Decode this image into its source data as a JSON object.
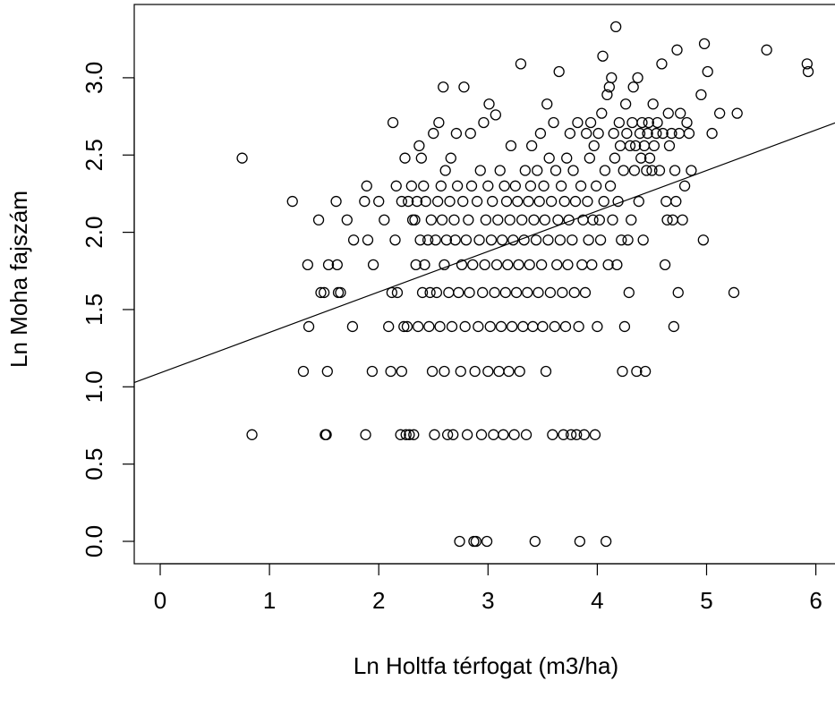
{
  "chart_data": {
    "type": "scatter",
    "title": "",
    "xlabel": "Ln Holtfa térfogat (m3/ha)",
    "ylabel": "Ln Moha fajszám",
    "xlim": [
      -0.25,
      6.25
    ],
    "ylim": [
      -0.12,
      3.35
    ],
    "xticks": [
      "0",
      "1",
      "2",
      "3",
      "4",
      "5",
      "6"
    ],
    "yticks": [
      "0.0",
      "0.5",
      "1.0",
      "1.5",
      "2.0",
      "2.5",
      "3.0"
    ],
    "grid": false,
    "legend": "none",
    "marker": "open-circle",
    "colors": {
      "points": "#000000",
      "line": "#000000",
      "frame": "#000000"
    },
    "regression_line": {
      "intercept": 1.09,
      "slope": 0.262
    },
    "points": [
      [
        0.75,
        2.48
      ],
      [
        0.84,
        0.69
      ],
      [
        1.21,
        2.2
      ],
      [
        1.31,
        1.1
      ],
      [
        1.35,
        1.79
      ],
      [
        1.36,
        1.39
      ],
      [
        1.45,
        2.08
      ],
      [
        1.47,
        1.61
      ],
      [
        1.5,
        1.61
      ],
      [
        1.51,
        0.69
      ],
      [
        1.52,
        0.69
      ],
      [
        1.53,
        1.1
      ],
      [
        1.54,
        1.79
      ],
      [
        1.61,
        2.2
      ],
      [
        1.62,
        1.79
      ],
      [
        1.63,
        1.61
      ],
      [
        1.65,
        1.61
      ],
      [
        1.71,
        2.08
      ],
      [
        1.76,
        1.39
      ],
      [
        1.77,
        1.95
      ],
      [
        1.87,
        2.2
      ],
      [
        1.88,
        0.69
      ],
      [
        1.89,
        2.3
      ],
      [
        1.9,
        1.95
      ],
      [
        1.94,
        1.1
      ],
      [
        1.95,
        1.79
      ],
      [
        2.0,
        2.2
      ],
      [
        2.05,
        2.08
      ],
      [
        2.09,
        1.39
      ],
      [
        2.11,
        1.1
      ],
      [
        2.12,
        1.61
      ],
      [
        2.13,
        2.71
      ],
      [
        2.15,
        1.95
      ],
      [
        2.16,
        2.3
      ],
      [
        2.17,
        1.61
      ],
      [
        2.2,
        0.69
      ],
      [
        2.21,
        1.1
      ],
      [
        2.21,
        2.2
      ],
      [
        2.23,
        1.39
      ],
      [
        2.24,
        2.48
      ],
      [
        2.25,
        0.69
      ],
      [
        2.26,
        1.39
      ],
      [
        2.27,
        2.2
      ],
      [
        2.28,
        0.69
      ],
      [
        2.3,
        2.3
      ],
      [
        2.31,
        2.08
      ],
      [
        2.32,
        0.69
      ],
      [
        2.33,
        2.08
      ],
      [
        2.34,
        1.79
      ],
      [
        2.35,
        2.2
      ],
      [
        2.36,
        1.39
      ],
      [
        2.37,
        2.56
      ],
      [
        2.38,
        1.95
      ],
      [
        2.39,
        2.48
      ],
      [
        2.4,
        1.61
      ],
      [
        2.41,
        2.3
      ],
      [
        2.42,
        1.79
      ],
      [
        2.43,
        2.2
      ],
      [
        2.45,
        1.95
      ],
      [
        2.46,
        1.39
      ],
      [
        2.47,
        1.61
      ],
      [
        2.48,
        2.08
      ],
      [
        2.49,
        1.1
      ],
      [
        2.5,
        2.64
      ],
      [
        2.51,
        0.69
      ],
      [
        2.52,
        1.95
      ],
      [
        2.53,
        1.61
      ],
      [
        2.54,
        2.2
      ],
      [
        2.55,
        2.71
      ],
      [
        2.56,
        1.39
      ],
      [
        2.57,
        2.3
      ],
      [
        2.58,
        2.08
      ],
      [
        2.59,
        2.94
      ],
      [
        2.6,
        1.79
      ],
      [
        2.6,
        1.1
      ],
      [
        2.61,
        2.4
      ],
      [
        2.62,
        1.95
      ],
      [
        2.63,
        0.69
      ],
      [
        2.64,
        1.61
      ],
      [
        2.65,
        2.2
      ],
      [
        2.66,
        2.48
      ],
      [
        2.67,
        1.39
      ],
      [
        2.68,
        0.69
      ],
      [
        2.69,
        2.08
      ],
      [
        2.7,
        1.95
      ],
      [
        2.71,
        2.64
      ],
      [
        2.72,
        2.3
      ],
      [
        2.73,
        1.61
      ],
      [
        2.74,
        0.0
      ],
      [
        2.75,
        1.1
      ],
      [
        2.76,
        1.79
      ],
      [
        2.77,
        2.2
      ],
      [
        2.78,
        2.94
      ],
      [
        2.79,
        1.39
      ],
      [
        2.8,
        1.95
      ],
      [
        2.81,
        0.69
      ],
      [
        2.82,
        2.08
      ],
      [
        2.83,
        1.61
      ],
      [
        2.84,
        2.64
      ],
      [
        2.85,
        2.3
      ],
      [
        2.86,
        1.79
      ],
      [
        2.87,
        0.0
      ],
      [
        2.88,
        1.1
      ],
      [
        2.89,
        0.0
      ],
      [
        2.9,
        2.2
      ],
      [
        2.91,
        1.39
      ],
      [
        2.92,
        1.95
      ],
      [
        2.93,
        2.4
      ],
      [
        2.94,
        0.69
      ],
      [
        2.95,
        1.61
      ],
      [
        2.96,
        2.71
      ],
      [
        2.97,
        1.79
      ],
      [
        2.98,
        2.08
      ],
      [
        2.99,
        0.0
      ],
      [
        3.0,
        1.1
      ],
      [
        3.0,
        2.3
      ],
      [
        3.01,
        2.83
      ],
      [
        3.02,
        1.39
      ],
      [
        3.03,
        1.95
      ],
      [
        3.04,
        2.2
      ],
      [
        3.05,
        0.69
      ],
      [
        3.06,
        1.61
      ],
      [
        3.07,
        2.76
      ],
      [
        3.08,
        1.79
      ],
      [
        3.09,
        2.08
      ],
      [
        3.1,
        1.1
      ],
      [
        3.11,
        2.4
      ],
      [
        3.12,
        1.39
      ],
      [
        3.13,
        1.95
      ],
      [
        3.14,
        0.69
      ],
      [
        3.15,
        2.3
      ],
      [
        3.16,
        1.61
      ],
      [
        3.17,
        2.2
      ],
      [
        3.18,
        1.79
      ],
      [
        3.19,
        1.1
      ],
      [
        3.2,
        2.08
      ],
      [
        3.21,
        2.56
      ],
      [
        3.22,
        1.39
      ],
      [
        3.23,
        1.95
      ],
      [
        3.24,
        0.69
      ],
      [
        3.25,
        2.3
      ],
      [
        3.26,
        1.61
      ],
      [
        3.27,
        2.2
      ],
      [
        3.28,
        1.79
      ],
      [
        3.29,
        1.1
      ],
      [
        3.3,
        3.09
      ],
      [
        3.31,
        2.08
      ],
      [
        3.32,
        1.39
      ],
      [
        3.33,
        1.95
      ],
      [
        3.34,
        2.4
      ],
      [
        3.35,
        0.69
      ],
      [
        3.36,
        1.61
      ],
      [
        3.37,
        2.2
      ],
      [
        3.38,
        1.79
      ],
      [
        3.39,
        2.3
      ],
      [
        3.4,
        2.56
      ],
      [
        3.41,
        1.39
      ],
      [
        3.42,
        2.08
      ],
      [
        3.43,
        0.0
      ],
      [
        3.44,
        1.95
      ],
      [
        3.45,
        2.4
      ],
      [
        3.46,
        1.61
      ],
      [
        3.47,
        2.2
      ],
      [
        3.48,
        2.64
      ],
      [
        3.49,
        1.79
      ],
      [
        3.5,
        1.39
      ],
      [
        3.51,
        2.3
      ],
      [
        3.52,
        2.08
      ],
      [
        3.53,
        1.1
      ],
      [
        3.54,
        2.83
      ],
      [
        3.55,
        1.95
      ],
      [
        3.56,
        2.48
      ],
      [
        3.57,
        1.61
      ],
      [
        3.58,
        2.2
      ],
      [
        3.59,
        0.69
      ],
      [
        3.6,
        2.71
      ],
      [
        3.61,
        1.39
      ],
      [
        3.62,
        2.4
      ],
      [
        3.63,
        1.79
      ],
      [
        3.64,
        2.08
      ],
      [
        3.65,
        3.04
      ],
      [
        3.66,
        1.95
      ],
      [
        3.67,
        2.3
      ],
      [
        3.68,
        1.61
      ],
      [
        3.69,
        0.69
      ],
      [
        3.7,
        2.2
      ],
      [
        3.71,
        1.39
      ],
      [
        3.72,
        2.48
      ],
      [
        3.73,
        1.79
      ],
      [
        3.74,
        2.08
      ],
      [
        3.75,
        2.64
      ],
      [
        3.76,
        0.69
      ],
      [
        3.77,
        1.95
      ],
      [
        3.78,
        2.4
      ],
      [
        3.79,
        1.61
      ],
      [
        3.8,
        2.2
      ],
      [
        3.81,
        0.69
      ],
      [
        3.82,
        2.71
      ],
      [
        3.83,
        1.39
      ],
      [
        3.84,
        0.0
      ],
      [
        3.85,
        2.3
      ],
      [
        3.86,
        1.79
      ],
      [
        3.87,
        2.08
      ],
      [
        3.88,
        0.69
      ],
      [
        3.89,
        1.61
      ],
      [
        3.9,
        2.64
      ],
      [
        3.91,
        2.2
      ],
      [
        3.92,
        1.95
      ],
      [
        3.93,
        2.48
      ],
      [
        3.94,
        2.71
      ],
      [
        3.95,
        1.79
      ],
      [
        3.96,
        2.08
      ],
      [
        3.97,
        2.56
      ],
      [
        3.98,
        0.69
      ],
      [
        3.99,
        2.3
      ],
      [
        4.0,
        1.39
      ],
      [
        4.01,
        2.64
      ],
      [
        4.02,
        2.08
      ],
      [
        4.03,
        1.95
      ],
      [
        4.04,
        2.77
      ],
      [
        4.05,
        3.14
      ],
      [
        4.06,
        2.2
      ],
      [
        4.07,
        2.4
      ],
      [
        4.08,
        0.0
      ],
      [
        4.09,
        2.89
      ],
      [
        4.1,
        1.79
      ],
      [
        4.11,
        2.94
      ],
      [
        4.12,
        2.3
      ],
      [
        4.13,
        3.0
      ],
      [
        4.14,
        2.08
      ],
      [
        4.15,
        2.64
      ],
      [
        4.16,
        2.48
      ],
      [
        4.17,
        3.33
      ],
      [
        4.18,
        1.79
      ],
      [
        4.19,
        2.2
      ],
      [
        4.2,
        2.71
      ],
      [
        4.21,
        2.56
      ],
      [
        4.22,
        1.95
      ],
      [
        4.23,
        1.1
      ],
      [
        4.24,
        2.4
      ],
      [
        4.25,
        1.39
      ],
      [
        4.26,
        2.83
      ],
      [
        4.27,
        2.64
      ],
      [
        4.28,
        1.95
      ],
      [
        4.29,
        1.61
      ],
      [
        4.3,
        2.56
      ],
      [
        4.31,
        2.08
      ],
      [
        4.32,
        2.71
      ],
      [
        4.33,
        2.94
      ],
      [
        4.34,
        2.4
      ],
      [
        4.35,
        2.56
      ],
      [
        4.36,
        1.1
      ],
      [
        4.37,
        3.0
      ],
      [
        4.38,
        2.2
      ],
      [
        4.39,
        2.64
      ],
      [
        4.4,
        2.48
      ],
      [
        4.41,
        2.71
      ],
      [
        4.42,
        1.95
      ],
      [
        4.43,
        2.56
      ],
      [
        4.44,
        1.1
      ],
      [
        4.45,
        2.4
      ],
      [
        4.46,
        2.64
      ],
      [
        4.47,
        2.71
      ],
      [
        4.48,
        2.48
      ],
      [
        4.5,
        2.4
      ],
      [
        4.51,
        2.83
      ],
      [
        4.52,
        2.56
      ],
      [
        4.54,
        2.64
      ],
      [
        4.55,
        2.71
      ],
      [
        4.57,
        2.4
      ],
      [
        4.59,
        3.09
      ],
      [
        4.6,
        2.64
      ],
      [
        4.62,
        1.79
      ],
      [
        4.63,
        2.2
      ],
      [
        4.64,
        2.08
      ],
      [
        4.65,
        2.77
      ],
      [
        4.66,
        2.56
      ],
      [
        4.68,
        2.64
      ],
      [
        4.69,
        2.08
      ],
      [
        4.7,
        1.39
      ],
      [
        4.71,
        2.4
      ],
      [
        4.72,
        2.2
      ],
      [
        4.73,
        3.18
      ],
      [
        4.74,
        1.61
      ],
      [
        4.75,
        2.64
      ],
      [
        4.76,
        2.77
      ],
      [
        4.78,
        2.08
      ],
      [
        4.8,
        2.3
      ],
      [
        4.82,
        2.71
      ],
      [
        4.84,
        2.64
      ],
      [
        4.86,
        2.4
      ],
      [
        4.95,
        2.89
      ],
      [
        4.97,
        1.95
      ],
      [
        4.98,
        3.22
      ],
      [
        5.01,
        3.04
      ],
      [
        5.05,
        2.64
      ],
      [
        5.12,
        2.77
      ],
      [
        5.25,
        1.61
      ],
      [
        5.28,
        2.77
      ],
      [
        5.55,
        3.18
      ],
      [
        5.92,
        3.09
      ],
      [
        5.93,
        3.04
      ]
    ]
  }
}
